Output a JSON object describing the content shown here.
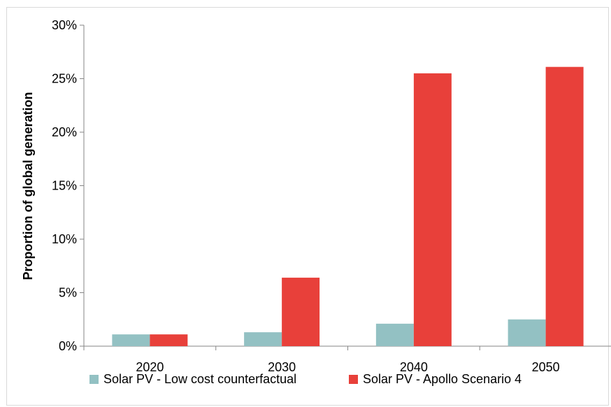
{
  "chart_data": {
    "type": "bar",
    "title": "",
    "xlabel": "",
    "ylabel": "Proportion of global generation",
    "categories": [
      "2020",
      "2030",
      "2040",
      "2050"
    ],
    "series": [
      {
        "name": "Solar PV - Low cost counterfactual",
        "color": "#93c1c3",
        "values": [
          1.1,
          1.3,
          2.1,
          2.5
        ]
      },
      {
        "name": "Solar PV - Apollo Scenario 4",
        "color": "#e8403a",
        "values": [
          1.1,
          6.4,
          25.5,
          26.1
        ]
      }
    ],
    "ylim": [
      0,
      30
    ],
    "yticks": [
      0,
      5,
      10,
      15,
      20,
      25,
      30
    ],
    "ytick_labels": [
      "0%",
      "5%",
      "10%",
      "15%",
      "20%",
      "25%",
      "30%"
    ],
    "grid": false,
    "legend_position": "bottom"
  }
}
